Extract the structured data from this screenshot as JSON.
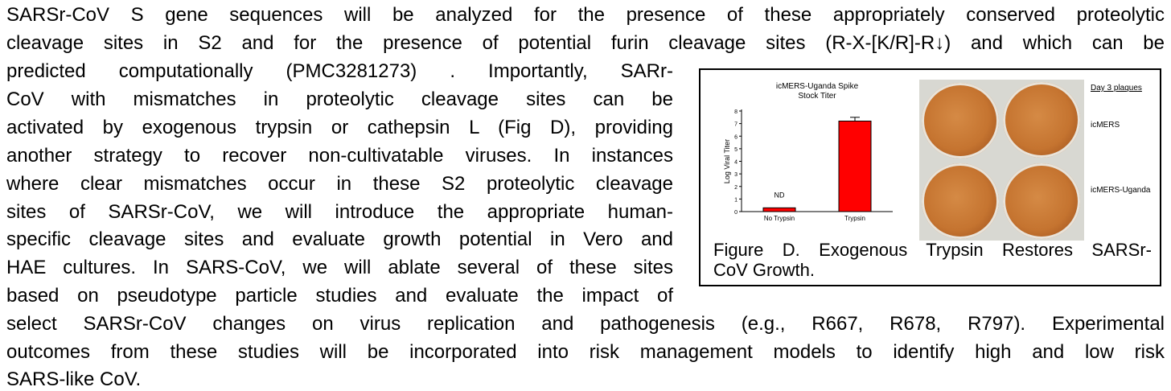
{
  "paragraph": {
    "line1": "SARSr-CoV S gene sequences will be analyzed for the presence of these appropriately conserved proteolytic",
    "line2": "cleavage sites in S2 and for the presence of potential furin cleavage sites (R-X-[K/R]-R↓) and which can be",
    "line3": "predicted computationally (PMC3281273) .  Importantly, SARr-",
    "line4": "CoV with mismatches in proteolytic cleavage sites can be",
    "line5": "activated by exogenous trypsin or cathepsin L (Fig D), providing",
    "line6": "another strategy to recover non-cultivatable viruses. In instances",
    "line7": "where clear mismatches occur in these S2 proteolytic cleavage",
    "line8": "sites of SARSr-CoV, we will introduce the appropriate human-",
    "line9": "specific cleavage sites and evaluate growth potential in Vero and",
    "line10": "HAE cultures. In SARS-CoV, we will ablate several of these sites",
    "line11": "based on pseudotype particle studies and evaluate the impact of",
    "line12": "select SARSr-CoV changes on virus replication and pathogenesis (e.g., R667, R678, R797). Experimental",
    "line13": "outcomes from these studies will be incorporated into risk management models to identify high and low risk",
    "line14": "SARS-like CoV."
  },
  "figure": {
    "caption_line1": "Figure D. Exogenous Trypsin Restores SARSr-",
    "caption_line2": "CoV Growth.",
    "plates_header": "Day 3 plaques",
    "plate_row1_label": "icMERS",
    "plate_row2_label": "icMERS-Uganda"
  },
  "chart_data": {
    "type": "bar",
    "title": "icMERS-Uganda Spike Stock Titer",
    "title_lines": [
      "icMERS-Uganda Spike",
      "Stock Titer"
    ],
    "categories": [
      "No Trypsin",
      "Trypsin"
    ],
    "values": [
      0.3,
      7.2
    ],
    "error": [
      0,
      0.3
    ],
    "annotations": [
      "ND",
      ""
    ],
    "ylabel": "Log Viral Titer",
    "ylim": [
      0,
      8
    ],
    "yticks": [
      "0",
      "1",
      "2",
      "3",
      "4",
      "5",
      "6",
      "7",
      "8"
    ],
    "bar_color": "#ff0000",
    "grid": false
  }
}
